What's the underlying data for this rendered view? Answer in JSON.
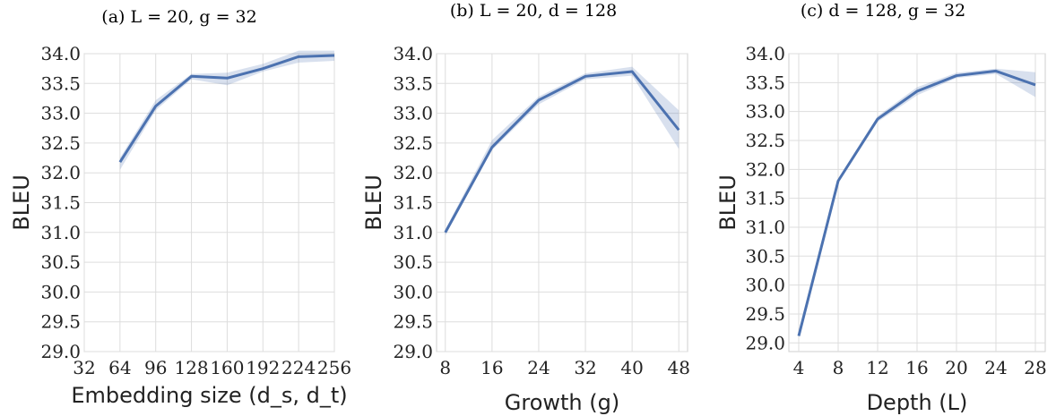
{
  "colors": {
    "line": "#4c72b0",
    "band": "#4c72b0",
    "grid": "#dddddd"
  },
  "chart_data": [
    {
      "type": "line",
      "title": "(a) L = 20,  g = 32",
      "xlabel": "Embedding size (d_s, d_t)",
      "ylabel": "BLEU",
      "xticks": [
        32,
        64,
        96,
        128,
        160,
        192,
        224,
        256
      ],
      "xlim": [
        32,
        256
      ],
      "ylim": [
        29.0,
        34.0
      ],
      "yticks": [
        "29.0",
        "29.5",
        "30.0",
        "30.5",
        "31.0",
        "31.5",
        "32.0",
        "32.5",
        "33.0",
        "33.5",
        "34.0"
      ],
      "grid": true,
      "series": [
        {
          "x": [
            64,
            96,
            128,
            160,
            192,
            224,
            256
          ],
          "y": [
            32.18,
            33.12,
            33.62,
            33.59,
            33.75,
            33.95,
            33.97
          ],
          "lower": [
            32.05,
            33.05,
            33.57,
            33.47,
            33.7,
            33.85,
            33.88
          ],
          "upper": [
            32.25,
            33.22,
            33.66,
            33.68,
            33.83,
            34.05,
            34.05
          ]
        }
      ]
    },
    {
      "type": "line",
      "title": "(b) L = 20,  d = 128",
      "xlabel": "Growth (g)",
      "ylabel": "BLEU",
      "xticks": [
        8,
        16,
        24,
        32,
        40,
        48
      ],
      "xlim": [
        6.5,
        49.5
      ],
      "ylim": [
        29.0,
        34.0
      ],
      "yticks": [
        "29.0",
        "29.5",
        "30.0",
        "30.5",
        "31.0",
        "31.5",
        "32.0",
        "32.5",
        "33.0",
        "33.5",
        "34.0"
      ],
      "grid": true,
      "series": [
        {
          "x": [
            8,
            16,
            24,
            32,
            40,
            48
          ],
          "y": [
            31.0,
            32.43,
            33.22,
            33.62,
            33.7,
            32.72
          ],
          "lower": [
            30.95,
            32.38,
            33.15,
            33.57,
            33.63,
            32.4
          ],
          "upper": [
            31.05,
            32.55,
            33.28,
            33.67,
            33.78,
            33.05
          ]
        }
      ]
    },
    {
      "type": "line",
      "title": "(c) d = 128,  g = 32",
      "xlabel": "Depth (L)",
      "ylabel": "BLEU",
      "xticks": [
        4,
        8,
        12,
        16,
        20,
        24,
        28
      ],
      "xlim": [
        3,
        29
      ],
      "ylim": [
        28.85,
        34.0
      ],
      "yticks": [
        "29.0",
        "29.5",
        "30.0",
        "30.5",
        "31.0",
        "31.5",
        "32.0",
        "32.5",
        "33.0",
        "33.5",
        "34.0"
      ],
      "grid": true,
      "series": [
        {
          "x": [
            4,
            8,
            12,
            16,
            20,
            24,
            28
          ],
          "y": [
            29.12,
            31.8,
            32.87,
            33.35,
            33.62,
            33.7,
            33.46
          ],
          "lower": [
            29.1,
            31.77,
            32.82,
            33.28,
            33.58,
            33.65,
            33.25
          ],
          "upper": [
            29.15,
            31.84,
            32.92,
            33.42,
            33.67,
            33.74,
            33.68
          ]
        }
      ]
    }
  ]
}
